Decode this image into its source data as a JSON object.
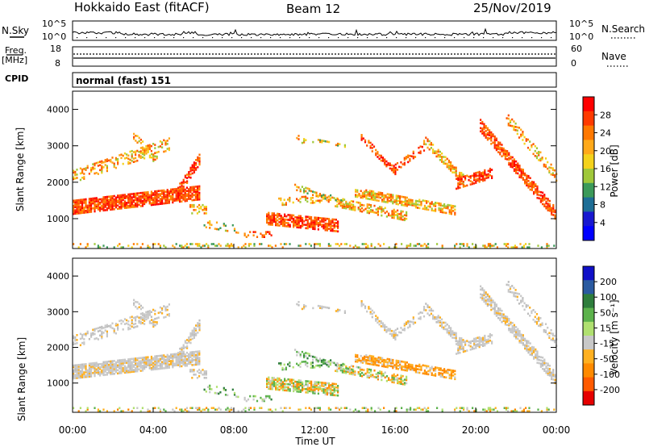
{
  "header": {
    "station": "Hokkaido East (fitACF)",
    "beam": "Beam 12",
    "date": "25/Nov/2019"
  },
  "noise_panel": {
    "left_label": "N.Sky",
    "right_label": "N.Search",
    "top_tick": "10^5",
    "bottom_tick": "10^0"
  },
  "freq_panel": {
    "left_label_1": "Freq.",
    "left_label_2": "[MHz]",
    "right_label": "Nave",
    "left_ticks": [
      "18",
      "8"
    ],
    "right_ticks": [
      "60",
      "0"
    ]
  },
  "cpid_panel": {
    "label": "CPID",
    "mode": "normal (fast) 151"
  },
  "chart_data": [
    {
      "type": "heatmap",
      "parameter": "power",
      "ylabel": "Slant Range [km]",
      "ylim": [
        180,
        4500
      ],
      "yticks": [
        "1000",
        "2000",
        "3000",
        "4000"
      ],
      "colorbar": {
        "label": "Power [dB]",
        "ticks": [
          "28",
          "24",
          "20",
          "16",
          "12",
          "8",
          "4"
        ],
        "colors": [
          "#ff0000",
          "#ff3a00",
          "#ff7800",
          "#ffa91a",
          "#f4d21c",
          "#a0c83a",
          "#3c9a5a",
          "#1e6e96",
          "#1818d0",
          "#0000ff"
        ]
      }
    },
    {
      "type": "heatmap",
      "parameter": "velocity",
      "ylabel": "Slant Range [km]",
      "ylim": [
        180,
        4500
      ],
      "yticks": [
        "1000",
        "2000",
        "3000",
        "4000"
      ],
      "colorbar": {
        "label": "Velocity [m s⁻¹]",
        "ticks": [
          "200",
          "100",
          "50",
          "15",
          "-15",
          "-50",
          "-100",
          "-200"
        ],
        "colors": [
          "#1010c8",
          "#2a5aa0",
          "#2e7d3c",
          "#5cb24c",
          "#b0e070",
          "#c8c8c8",
          "#ffb020",
          "#ff8a00",
          "#ff5a00",
          "#e60000"
        ]
      }
    }
  ],
  "xaxis": {
    "label": "Time UT",
    "ticks": [
      "00:00",
      "04:00",
      "08:00",
      "12:00",
      "16:00",
      "20:00",
      "00:00"
    ]
  }
}
